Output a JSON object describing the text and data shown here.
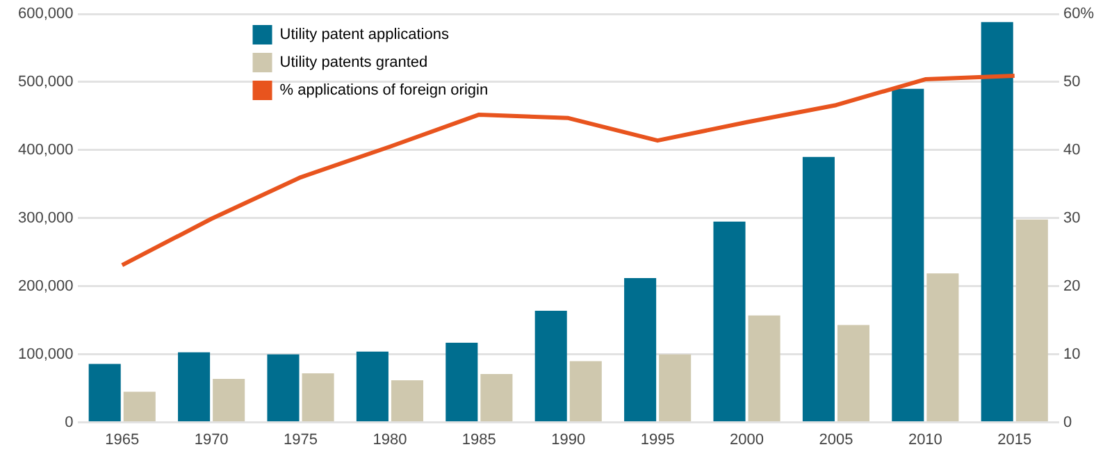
{
  "chart_data": {
    "type": "bar",
    "categories": [
      "1965",
      "1970",
      "1975",
      "1980",
      "1985",
      "1990",
      "1995",
      "2000",
      "2005",
      "2010",
      "2015"
    ],
    "series": [
      {
        "name": "Utility patent applications",
        "color": "#006e8f",
        "values": [
          86000,
          103000,
          100000,
          104000,
          117000,
          164000,
          212000,
          295000,
          390000,
          490000,
          588000
        ]
      },
      {
        "name": "Utility patents granted",
        "color": "#cfc8ae",
        "values": [
          45000,
          64000,
          72000,
          62000,
          71000,
          90000,
          100000,
          157000,
          143000,
          219000,
          298000
        ]
      },
      {
        "name": "% applications of foreign origin",
        "type": "line",
        "axis": "y2",
        "color": "#e8541e",
        "values": [
          23.1,
          29.9,
          36,
          40.5,
          45.2,
          44.7,
          41.4,
          44.1,
          46.6,
          50.4,
          50.9
        ]
      }
    ],
    "ylim": [
      0,
      600000
    ],
    "yticks": [
      0,
      {
        "value": 100000,
        "label": "100,000"
      },
      {
        "value": 200000,
        "label": "200,000"
      },
      {
        "value": 300000,
        "label": "300,000"
      },
      {
        "value": 400000,
        "label": "400,000"
      },
      {
        "value": 500000,
        "label": "500,000"
      },
      {
        "value": 600000,
        "label": "600,000"
      }
    ],
    "y2lim": [
      0,
      60
    ],
    "y2ticks": [
      0,
      10,
      20,
      30,
      40,
      50,
      {
        "value": 60,
        "label": "60%"
      }
    ],
    "grid": "y",
    "legend": "top left",
    "marker": "none"
  }
}
